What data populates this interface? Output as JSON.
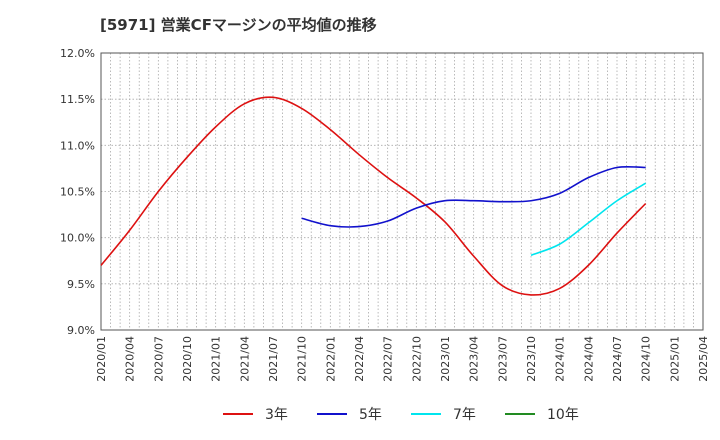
{
  "chart_data": {
    "type": "line",
    "title": "[5971]  営業CFマージンの平均値の推移",
    "xlabel": "",
    "ylabel": "",
    "ylim": [
      9.0,
      12.0
    ],
    "yticks": [
      "9.0%",
      "9.5%",
      "10.0%",
      "10.5%",
      "11.0%",
      "11.5%",
      "12.0%"
    ],
    "xticks": [
      "2020/01",
      "2020/04",
      "2020/07",
      "2020/10",
      "2021/01",
      "2021/04",
      "2021/07",
      "2021/10",
      "2022/01",
      "2022/04",
      "2022/07",
      "2022/10",
      "2023/01",
      "2023/04",
      "2023/07",
      "2023/10",
      "2024/01",
      "2024/04",
      "2024/07",
      "2024/10",
      "2025/01",
      "2025/04"
    ],
    "grid": true,
    "legend_position": "bottom",
    "series": [
      {
        "name": "3年",
        "color": "#dd1111",
        "x": [
          "2020/01",
          "2020/04",
          "2020/07",
          "2020/10",
          "2021/01",
          "2021/04",
          "2021/07",
          "2021/10",
          "2022/01",
          "2022/04",
          "2022/07",
          "2022/10",
          "2023/01",
          "2023/04",
          "2023/07",
          "2023/10",
          "2024/01",
          "2024/04",
          "2024/07",
          "2024/10"
        ],
        "values": [
          9.7,
          10.08,
          10.5,
          10.87,
          11.2,
          11.45,
          11.52,
          11.4,
          11.17,
          10.9,
          10.65,
          10.43,
          10.17,
          9.8,
          9.48,
          9.38,
          9.45,
          9.7,
          10.05,
          10.37
        ]
      },
      {
        "name": "5年",
        "color": "#1111cc",
        "x": [
          "2021/10",
          "2022/01",
          "2022/04",
          "2022/07",
          "2022/10",
          "2023/01",
          "2023/04",
          "2023/07",
          "2023/10",
          "2024/01",
          "2024/04",
          "2024/07",
          "2024/10"
        ],
        "values": [
          10.21,
          10.13,
          10.12,
          10.18,
          10.32,
          10.4,
          10.4,
          10.39,
          10.4,
          10.48,
          10.65,
          10.76,
          10.76
        ]
      },
      {
        "name": "7年",
        "color": "#00e5ee",
        "x": [
          "2023/10",
          "2024/01",
          "2024/04",
          "2024/07",
          "2024/10"
        ],
        "values": [
          9.81,
          9.93,
          10.16,
          10.4,
          10.59
        ]
      },
      {
        "name": "10年",
        "color": "#228b22",
        "x": [],
        "values": []
      }
    ]
  }
}
